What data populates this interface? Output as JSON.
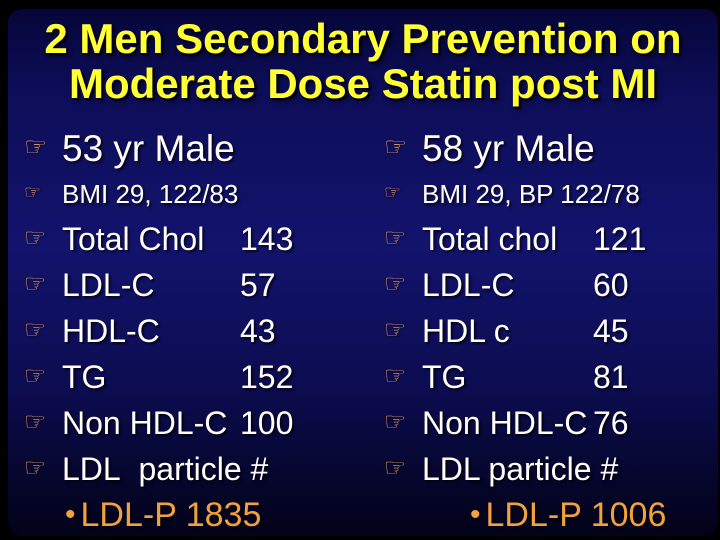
{
  "slide": {
    "title_line1": "2 Men Secondary Prevention on",
    "title_line2": "Moderate Dose Statin post MI",
    "bullet_icon": "☞",
    "colors": {
      "background_navy": "#13136d",
      "frame_black": "#000000",
      "title_yellow": "#ffff33",
      "body_white": "#ffffff",
      "hand_bullet_tan": "#eaa05e",
      "accent_orange": "#f2a23c"
    },
    "columns": [
      {
        "header": "53 yr Male",
        "subheader": "BMI 29, 122/83",
        "rows": [
          {
            "label": "Total Chol",
            "value": "143"
          },
          {
            "label": "LDL-C",
            "value": "57"
          },
          {
            "label": "HDL-C",
            "value": "43"
          },
          {
            "label": "TG",
            "value": "152"
          },
          {
            "label": "Non HDL-C",
            "value": "100"
          },
          {
            "label": "LDL  particle #",
            "value": ""
          }
        ],
        "footer_bullet": "•",
        "footer": "LDL-P 1835"
      },
      {
        "header": "58 yr Male",
        "subheader": "BMI 29, BP 122/78",
        "rows": [
          {
            "label": "Total chol",
            "value": "121"
          },
          {
            "label": "LDL-C",
            "value": "60"
          },
          {
            "label": "HDL c",
            "value": "45"
          },
          {
            "label": "TG",
            "value": "81"
          },
          {
            "label": "Non HDL-C",
            "value": "76"
          },
          {
            "label": "LDL particle #",
            "value": ""
          }
        ],
        "footer_bullet": "•",
        "footer": "LDL-P 1006"
      }
    ]
  }
}
